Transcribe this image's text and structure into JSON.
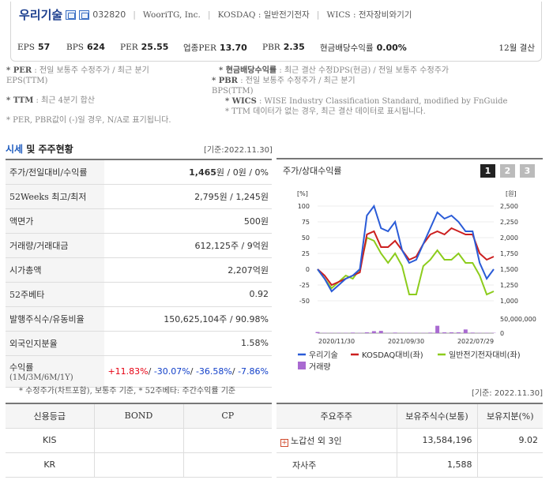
{
  "header": {
    "company_name": "우리기술",
    "stock_code": "032820",
    "english_name": "WooriTG, Inc.",
    "market": "KOSDAQ : 일반전기전자",
    "wics": "WICS : 전자장비와기기",
    "metrics": [
      {
        "key": "EPS",
        "value": "57"
      },
      {
        "key": "BPS",
        "value": "624"
      },
      {
        "key": "PER",
        "value": "25.55"
      },
      {
        "key": "업종PER",
        "value": "13.70"
      },
      {
        "key": "PBR",
        "value": "2.35"
      },
      {
        "key": "현금배당수익률",
        "value": "0.00%"
      }
    ],
    "settlement": "12월 결산"
  },
  "notes": {
    "left1": "* PER : 전일 보통주 수정주가 / 최근 분기 EPS(TTM)",
    "left1_key": "* PER",
    "left1_rest": ": 전일 보통주 수정주가 / 최근 분기",
    "left1_line2": "EPS(TTM)",
    "left2_key": "* TTM",
    "left2_rest": ": 최근 4분기 합산",
    "left3": "* PER, PBR값이 (-)일 경우, N/A로 표기됩니다.",
    "right1_key": "* 현금배당수익률",
    "right1_rest": ": 최근 결산 수정DPS(현금) / 전일 보통주 수정주가",
    "right2_key": "* PBR",
    "right2_rest": ": 전일 보통주 수정주가 / 최근 분기",
    "right2_line2": "BPS(TTM)",
    "right3_key": "* WICS",
    "right3_rest": ": WISE Industry Classification Standard, modified by FnGuide",
    "right4": "* TTM 데이터가 없는 경우, 최근 결산 데이터로 표시됩니다."
  },
  "section": {
    "title_blue": "시세",
    "title_rest": " 및 주주현황",
    "date": "[기준:2022.11.30]"
  },
  "price_table": [
    {
      "key": "주가/전일대비/수익률",
      "value_bold": "1,465",
      "value_rest": "원 / 0원 / 0%"
    },
    {
      "key": "52Weeks 최고/최저",
      "value": "2,795원 / 1,245원"
    },
    {
      "key": "액면가",
      "value": "500원"
    },
    {
      "key": "거래량/거래대금",
      "value": "612,125주 / 9억원"
    },
    {
      "key": "시가총액",
      "value": "2,207억원"
    },
    {
      "key": "52주베타",
      "value": "0.92"
    },
    {
      "key": "발행주식수/유동비율",
      "value": "150,625,104주 / 90.98%"
    },
    {
      "key": "외국인지분율",
      "value": "1.58%"
    }
  ],
  "returns": {
    "key": "수익률",
    "sub": "(1M/3M/6M/1Y)",
    "r1m": "+11.83%",
    "r3m": "-30.07%",
    "r6m": "-36.58%",
    "r1y": "-7.86%"
  },
  "footnote": "* 수정주가(차트포함), 보통주 기준, * 52주베타: 주간수익률 기준",
  "chart_panel": {
    "title": "주가/상대수익률",
    "tabs": [
      "1",
      "2",
      "3"
    ],
    "active_tab": "1"
  },
  "chart_data": {
    "type": "line",
    "left_axis_unit": "[%]",
    "right_axis_unit": "[원]",
    "ylim_left": [
      -50,
      100
    ],
    "ylim_right": [
      1000,
      2500
    ],
    "y_ticks_left": [
      "100",
      "75",
      "50",
      "25",
      "0",
      "-25",
      "-50"
    ],
    "y_ticks_right": [
      "2,500",
      "2,250",
      "2,000",
      "1,750",
      "1,500",
      "1,250",
      "1,000"
    ],
    "volume_ticks": [
      "50,000,000",
      "0"
    ],
    "x_tick_labels": [
      "2020/11/30",
      "2021/09/30",
      "2022/07/29"
    ],
    "series": [
      {
        "name": "우리기술",
        "color": "#2a5bd7",
        "values": [
          0,
          -15,
          -35,
          -25,
          -15,
          -10,
          0,
          85,
          100,
          65,
          60,
          75,
          30,
          10,
          15,
          40,
          65,
          90,
          80,
          85,
          75,
          60,
          60,
          10,
          -15,
          0
        ]
      },
      {
        "name": "KOSDAQ대비(좌)",
        "color": "#cc1f1f",
        "values": [
          0,
          -10,
          -25,
          -20,
          -15,
          -10,
          -5,
          55,
          60,
          35,
          35,
          45,
          30,
          15,
          20,
          40,
          55,
          60,
          55,
          65,
          60,
          55,
          55,
          25,
          15,
          20
        ]
      },
      {
        "name": "일반전기전자대비(좌)",
        "color": "#8ccc1c",
        "values": [
          0,
          -15,
          -30,
          -20,
          -10,
          -15,
          0,
          50,
          45,
          25,
          10,
          25,
          5,
          -40,
          -40,
          5,
          15,
          30,
          15,
          15,
          25,
          10,
          10,
          -10,
          -40,
          -35
        ]
      },
      {
        "name": "거래량",
        "color": "#a96ad1",
        "values": [
          4,
          1,
          1,
          1,
          1,
          2,
          1,
          3,
          7,
          8,
          1,
          2,
          1,
          1,
          1,
          1,
          2,
          26,
          3,
          3,
          3,
          13,
          2,
          1,
          1,
          1
        ]
      }
    ]
  },
  "right_date": "[기준: 2022.11.30]",
  "credit_table": {
    "headers": [
      "신용등급",
      "BOND",
      "CP"
    ],
    "rows": [
      [
        "KIS",
        "",
        ""
      ],
      [
        "KR",
        "",
        ""
      ]
    ]
  },
  "holders_table": {
    "headers": [
      "주요주주",
      "보유주식수(보통)",
      "보유지분(%)"
    ],
    "rows": [
      {
        "name": "노갑선 외 3인",
        "shares": "13,584,196",
        "pct": "9.02",
        "expandable": true
      },
      {
        "name": "자사주",
        "shares": "1,588",
        "pct": "",
        "expandable": false
      }
    ]
  }
}
